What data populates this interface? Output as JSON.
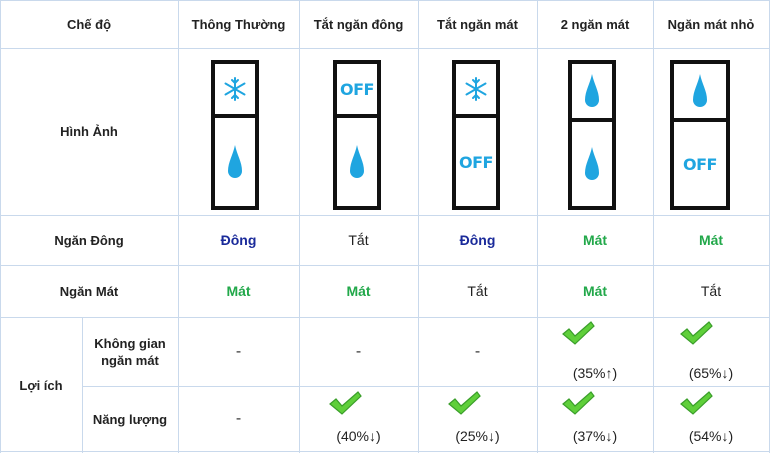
{
  "header": {
    "mode_label": "Chế độ",
    "cols": [
      "Thông Thường",
      "Tắt ngăn đông",
      "Tắt ngăn mát",
      "2 ngăn mát",
      "Ngăn mát nhỏ"
    ]
  },
  "images_row": {
    "label": "Hình Ảnh",
    "fridges": [
      {
        "top": "snowflake-icon",
        "bottom": "water-drop-icon"
      },
      {
        "top": "OFF",
        "bottom": "water-drop-icon"
      },
      {
        "top": "snowflake-icon",
        "bottom": "OFF"
      },
      {
        "top": "water-drop-icon",
        "bottom": "water-drop-icon"
      },
      {
        "top": "water-drop-icon",
        "bottom": "OFF"
      }
    ],
    "off_text": "OFF"
  },
  "freezer_row": {
    "label": "Ngăn Đông",
    "values": [
      "Đông",
      "Tắt",
      "Đông",
      "Mát",
      "Mát"
    ]
  },
  "fridge_row": {
    "label": "Ngăn Mát",
    "values": [
      "Mát",
      "Mát",
      "Tắt",
      "Mát",
      "Tắt"
    ]
  },
  "benefits": {
    "label": "Lợi ích",
    "space_label": "Không gian ngăn mát",
    "space_values": [
      "-",
      "-",
      "-",
      "(35%↑)",
      "(65%↓)"
    ],
    "energy_label": "Năng lượng",
    "energy_values": [
      "-",
      "(40%↓)",
      "(25%↓)",
      "(37%↓)",
      "(54%↓)"
    ]
  },
  "colors": {
    "blue_text": "#1a2a9a",
    "green_text": "#22a84a",
    "grid": "#c9d9ec",
    "icon_blue": "#1fa5e0",
    "check_green": "#5fcf3a"
  }
}
